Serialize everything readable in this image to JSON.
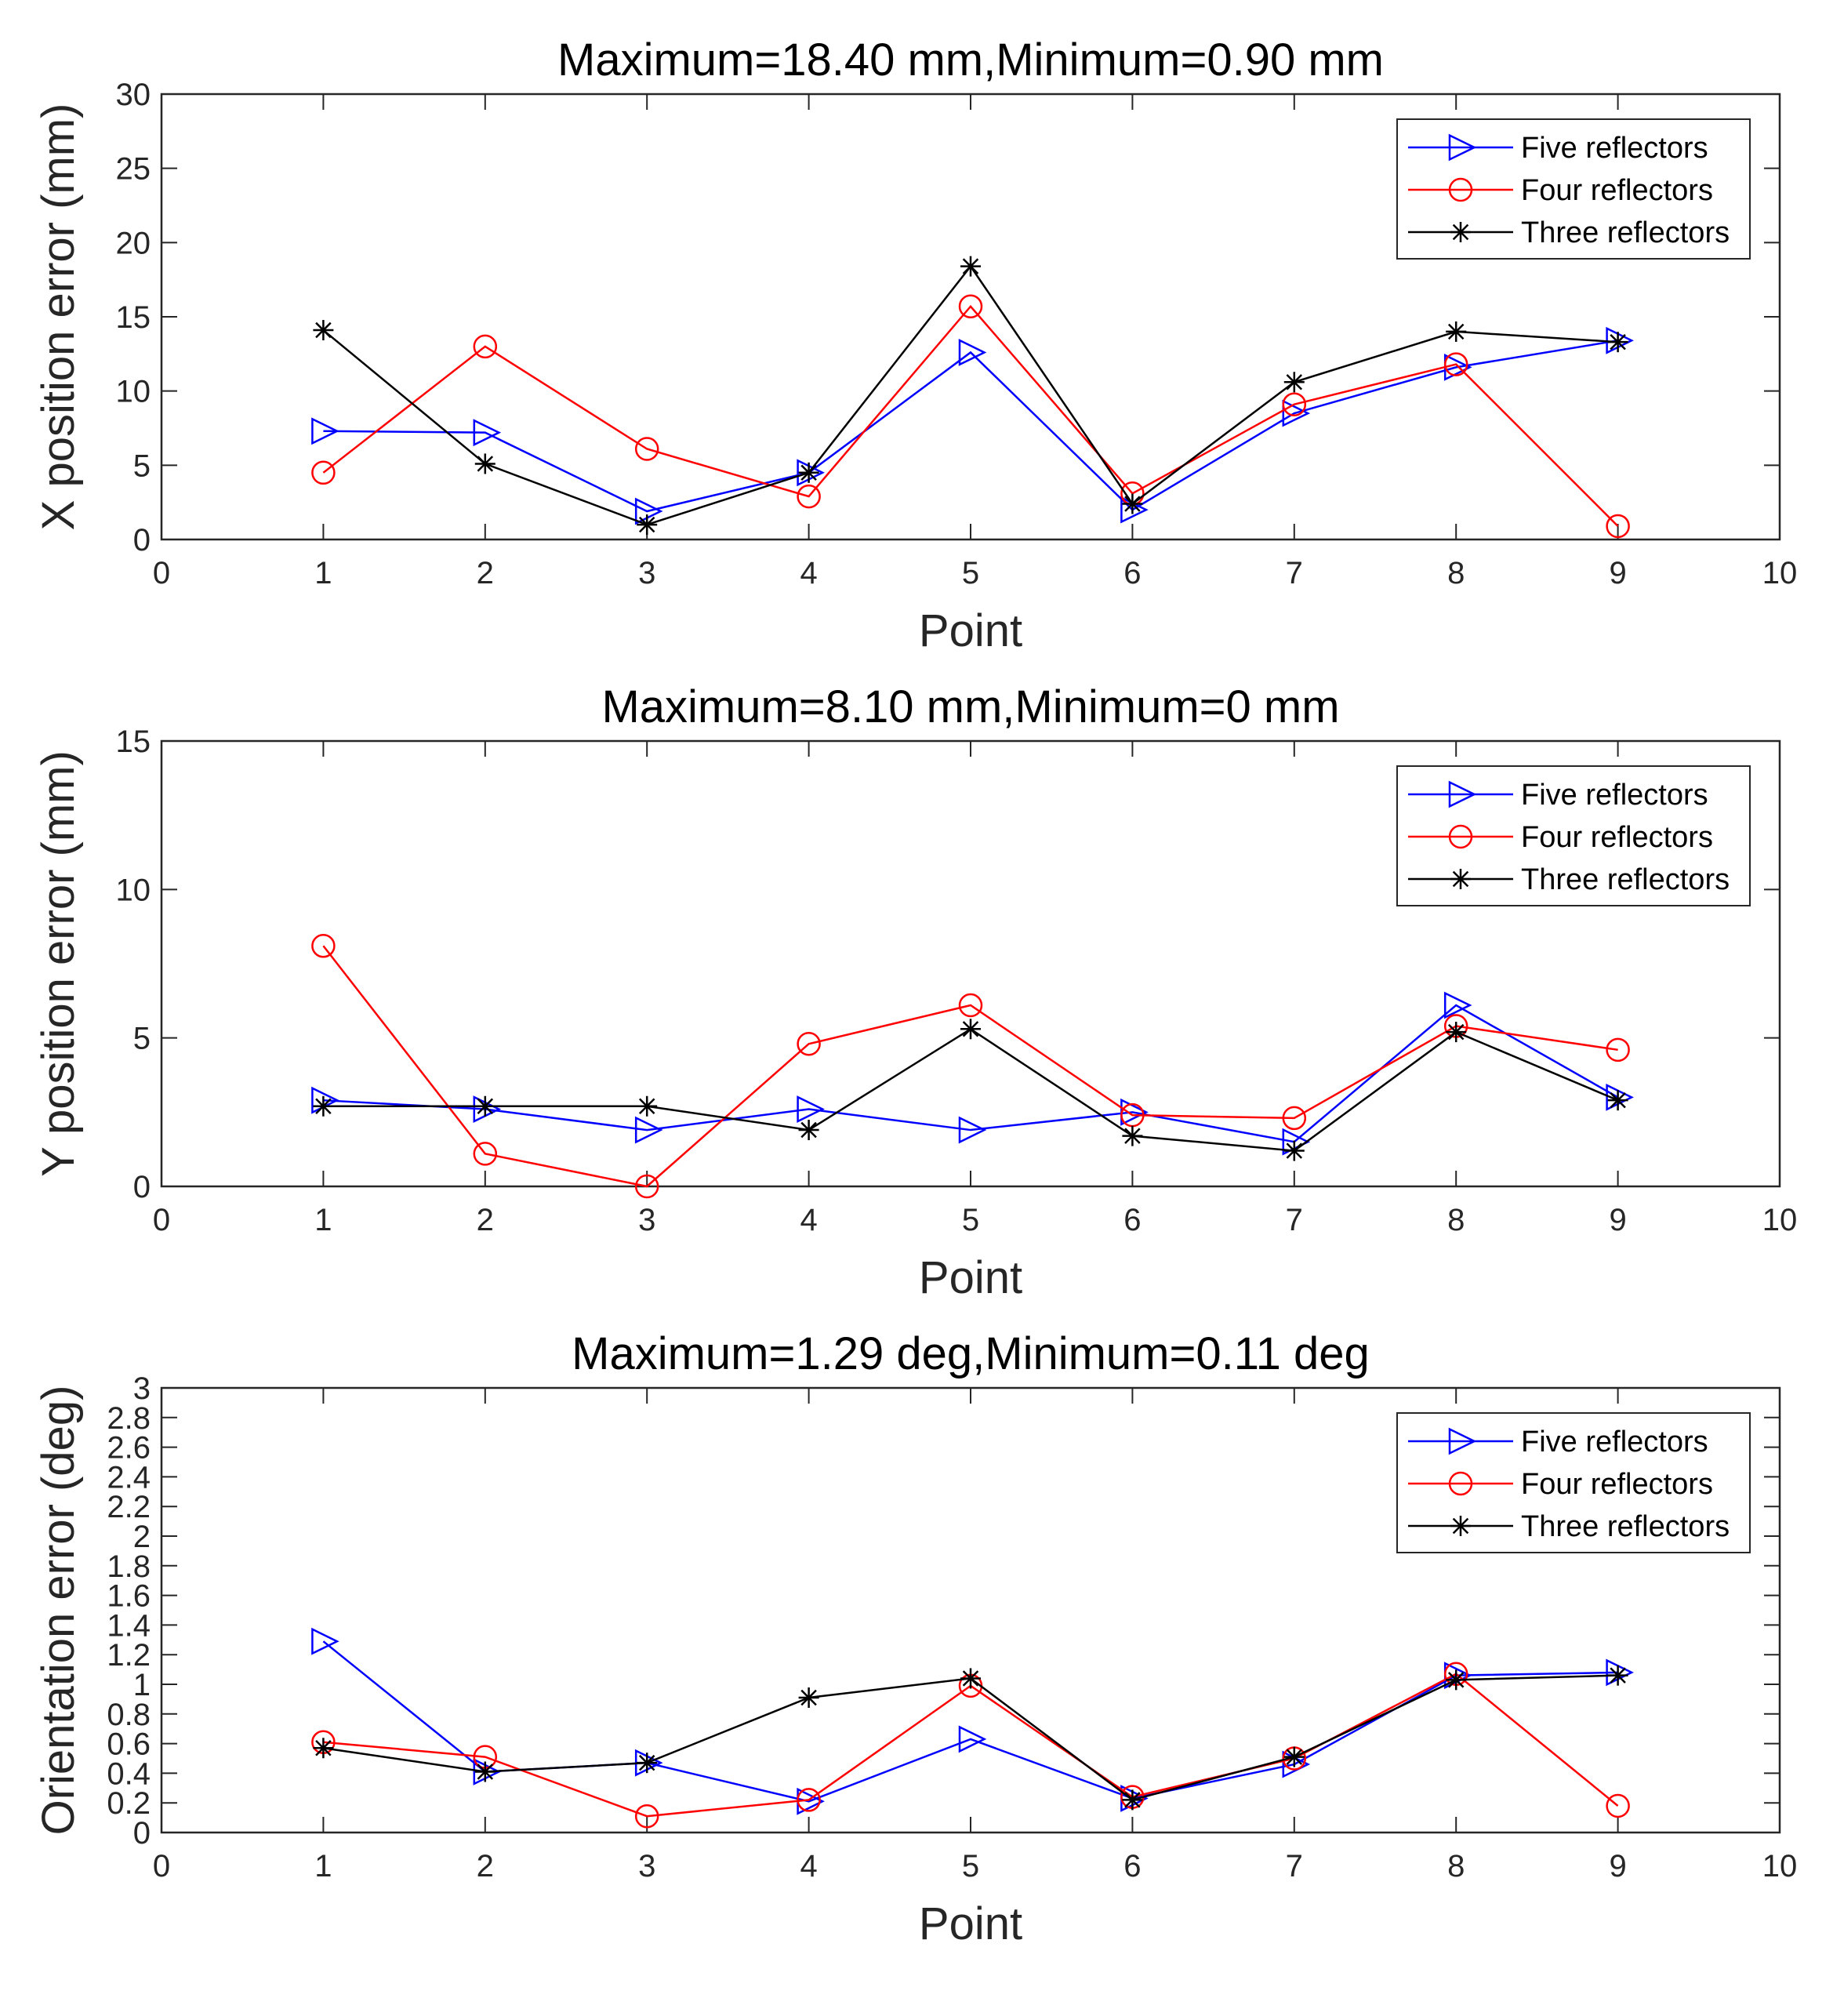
{
  "chart_data": [
    {
      "type": "line",
      "title": "Maximum=18.40 mm,Minimum=0.90 mm",
      "xlabel": "Point",
      "ylabel": "X position error (mm)",
      "xlim": [
        0,
        10
      ],
      "ylim": [
        0,
        30
      ],
      "xticks": [
        0,
        1,
        2,
        3,
        4,
        5,
        6,
        7,
        8,
        9,
        10
      ],
      "yticks": [
        0,
        5,
        10,
        15,
        20,
        25,
        30
      ],
      "x": [
        1,
        2,
        3,
        4,
        5,
        6,
        7,
        8,
        9
      ],
      "legend_position": "top-right",
      "grid": false,
      "series": [
        {
          "name": "Five reflectors",
          "color": "#0000ff",
          "marker": "triangle-right",
          "values": [
            7.3,
            7.2,
            1.9,
            4.5,
            12.6,
            2.0,
            8.5,
            11.6,
            13.4
          ]
        },
        {
          "name": "Four reflectors",
          "color": "#ff0000",
          "marker": "circle",
          "values": [
            4.5,
            13.0,
            6.1,
            2.9,
            15.7,
            3.1,
            9.1,
            11.8,
            0.9
          ]
        },
        {
          "name": "Three reflectors",
          "color": "#000000",
          "marker": "star",
          "values": [
            14.1,
            5.1,
            1.0,
            4.5,
            18.4,
            2.4,
            10.6,
            14.0,
            13.3
          ]
        }
      ]
    },
    {
      "type": "line",
      "title": "Maximum=8.10 mm,Minimum=0 mm",
      "xlabel": "Point",
      "ylabel": "Y position error (mm)",
      "xlim": [
        0,
        10
      ],
      "ylim": [
        0,
        15
      ],
      "xticks": [
        0,
        1,
        2,
        3,
        4,
        5,
        6,
        7,
        8,
        9,
        10
      ],
      "yticks": [
        0,
        5,
        10,
        15
      ],
      "x": [
        1,
        2,
        3,
        4,
        5,
        6,
        7,
        8,
        9
      ],
      "legend_position": "top-right",
      "grid": false,
      "series": [
        {
          "name": "Five reflectors",
          "color": "#0000ff",
          "marker": "triangle-right",
          "values": [
            2.9,
            2.6,
            1.9,
            2.6,
            1.9,
            2.5,
            1.5,
            6.1,
            3.0
          ]
        },
        {
          "name": "Four reflectors",
          "color": "#ff0000",
          "marker": "circle",
          "values": [
            8.1,
            1.1,
            0.0,
            4.8,
            6.1,
            2.4,
            2.3,
            5.4,
            4.6
          ]
        },
        {
          "name": "Three reflectors",
          "color": "#000000",
          "marker": "star",
          "values": [
            2.7,
            2.7,
            2.7,
            1.9,
            5.3,
            1.7,
            1.2,
            5.2,
            2.9
          ]
        }
      ]
    },
    {
      "type": "line",
      "title": "Maximum=1.29 deg,Minimum=0.11 deg",
      "xlabel": "Point",
      "ylabel": "Orientation error (deg)",
      "xlim": [
        0,
        10
      ],
      "ylim": [
        0,
        3
      ],
      "xticks": [
        0,
        1,
        2,
        3,
        4,
        5,
        6,
        7,
        8,
        9,
        10
      ],
      "yticks": [
        0,
        0.2,
        0.4,
        0.6,
        0.8,
        1,
        1.2,
        1.4,
        1.6,
        1.8,
        2,
        2.2,
        2.4,
        2.6,
        2.8,
        3
      ],
      "x": [
        1,
        2,
        3,
        4,
        5,
        6,
        7,
        8,
        9
      ],
      "legend_position": "top-right",
      "grid": false,
      "series": [
        {
          "name": "Five reflectors",
          "color": "#0000ff",
          "marker": "triangle-right",
          "values": [
            1.29,
            0.41,
            0.47,
            0.21,
            0.63,
            0.23,
            0.46,
            1.06,
            1.08
          ]
        },
        {
          "name": "Four reflectors",
          "color": "#ff0000",
          "marker": "circle",
          "values": [
            0.61,
            0.51,
            0.11,
            0.22,
            0.99,
            0.24,
            0.5,
            1.07,
            0.18
          ]
        },
        {
          "name": "Three reflectors",
          "color": "#000000",
          "marker": "star",
          "values": [
            0.57,
            0.41,
            0.47,
            0.91,
            1.04,
            0.22,
            0.51,
            1.03,
            1.06
          ]
        }
      ]
    }
  ]
}
